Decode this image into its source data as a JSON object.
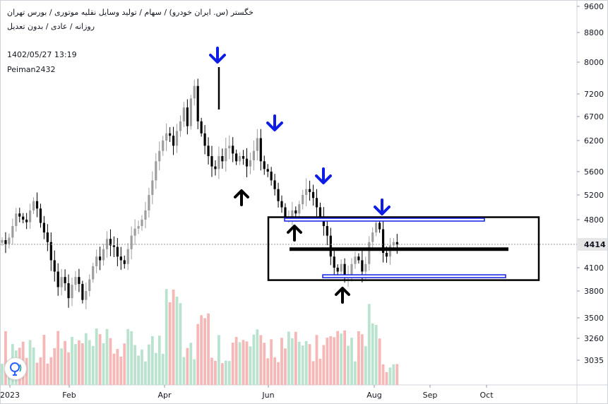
{
  "header": {
    "line1": "خگستر (س. ایران خودرو) / سهام / تولید وسایل نقلیه موتوری / بورس تهران",
    "line2": "روزانه / عادی / بدون تعدیل",
    "timestamp": "1402/05/27 13:19",
    "author": "Peiman2432"
  },
  "logo": {
    "icon": "tradingview-bulb-icon"
  },
  "colors": {
    "up": "#9e9e9e",
    "down": "#000000",
    "vol_up": "#b9e3cf",
    "vol_down": "#f6b7b7",
    "arrow_top": "#0d1de6",
    "arrow_bottom": "#000000",
    "zone": "#0d1de6",
    "price_tag": "#e6e6e6"
  },
  "chart_data": {
    "type": "candlestick",
    "price_axis_ticks": [
      9600,
      8800,
      8000,
      7200,
      6700,
      6200,
      5600,
      5200,
      4800,
      4414,
      4100,
      3800,
      3500,
      3260,
      3035
    ],
    "time_axis_ticks": [
      "2023",
      "Feb",
      "Apr",
      "Jun",
      "Aug",
      "Sep",
      "Oct"
    ],
    "last_price": 4414,
    "ohlc_close": [
      4480,
      4420,
      4520,
      4700,
      4900,
      4850,
      4800,
      4760,
      4950,
      5100,
      4980,
      4750,
      4600,
      4450,
      4200,
      4050,
      3850,
      3980,
      3900,
      3720,
      3880,
      3980,
      3890,
      3700,
      3800,
      3950,
      4120,
      4250,
      4200,
      4350,
      4500,
      4400,
      4380,
      4250,
      4200,
      4150,
      4350,
      4550,
      4660,
      4700,
      4800,
      4950,
      5200,
      5450,
      5800,
      6000,
      6200,
      6350,
      6300,
      6100,
      6400,
      6600,
      6900,
      6500,
      7100,
      7400,
      6600,
      6350,
      6100,
      5900,
      5700,
      5650,
      5900,
      5800,
      6050,
      6100,
      5950,
      5800,
      5900,
      5850,
      5700,
      5820,
      6000,
      6250,
      5800,
      5650,
      5600,
      5450,
      5300,
      5100,
      5000,
      4850,
      4850,
      4950,
      4900,
      5050,
      5200,
      5300,
      5250,
      5150,
      5000,
      4850,
      4700,
      4550,
      4250,
      4100,
      4050,
      4150,
      3980,
      4000,
      4150,
      4250,
      4200,
      4050,
      4150,
      4450,
      4600,
      4750,
      4650,
      4300,
      4250,
      4400,
      4450,
      4414
    ],
    "annotations": {
      "box_zone": [
        3940,
        4840
      ],
      "support_line": 4350,
      "resistance_line": 4800,
      "lower_line": 3990,
      "down_arrows": 4,
      "up_arrows": 3
    }
  }
}
